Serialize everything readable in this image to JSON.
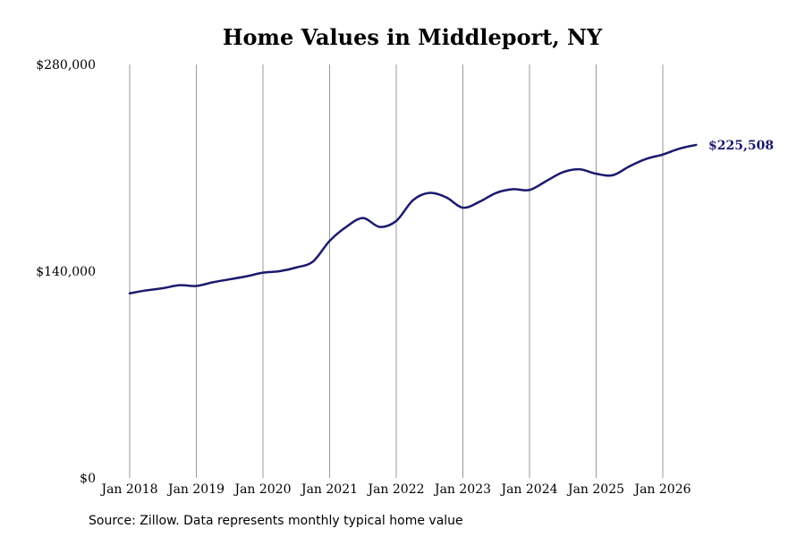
{
  "chart_data": {
    "type": "line",
    "title": "Home Values in Middleport, NY",
    "xlabel": "",
    "ylabel": "",
    "x_range": [
      "2018-01",
      "2026-08"
    ],
    "ylim": [
      0,
      280000
    ],
    "yticks": [
      {
        "value": 0,
        "label": "$0"
      },
      {
        "value": 140000,
        "label": "$140,000"
      },
      {
        "value": 280000,
        "label": "$280,000"
      }
    ],
    "xticks": [
      {
        "date": "2018-01",
        "label": "Jan 2018"
      },
      {
        "date": "2019-01",
        "label": "Jan 2019"
      },
      {
        "date": "2020-01",
        "label": "Jan 2020"
      },
      {
        "date": "2021-01",
        "label": "Jan 2021"
      },
      {
        "date": "2022-01",
        "label": "Jan 2022"
      },
      {
        "date": "2023-01",
        "label": "Jan 2023"
      },
      {
        "date": "2024-01",
        "label": "Jan 2024"
      },
      {
        "date": "2025-01",
        "label": "Jan 2025"
      },
      {
        "date": "2026-01",
        "label": "Jan 2026"
      }
    ],
    "grid": "vertical",
    "series": [
      {
        "name": "",
        "color": "#1a1a6e",
        "points": [
          {
            "x": "2018-01",
            "y": 125000
          },
          {
            "x": "2018-04",
            "y": 127000
          },
          {
            "x": "2018-07",
            "y": 128500
          },
          {
            "x": "2018-10",
            "y": 130500
          },
          {
            "x": "2019-01",
            "y": 130000
          },
          {
            "x": "2019-04",
            "y": 132500
          },
          {
            "x": "2019-07",
            "y": 134500
          },
          {
            "x": "2019-10",
            "y": 136500
          },
          {
            "x": "2020-01",
            "y": 139000
          },
          {
            "x": "2020-04",
            "y": 140000
          },
          {
            "x": "2020-07",
            "y": 142500
          },
          {
            "x": "2020-10",
            "y": 146500
          },
          {
            "x": "2021-01",
            "y": 160500
          },
          {
            "x": "2021-04",
            "y": 170000
          },
          {
            "x": "2021-07",
            "y": 176000
          },
          {
            "x": "2021-10",
            "y": 170000
          },
          {
            "x": "2022-01",
            "y": 174000
          },
          {
            "x": "2022-04",
            "y": 188000
          },
          {
            "x": "2022-07",
            "y": 193000
          },
          {
            "x": "2022-10",
            "y": 190000
          },
          {
            "x": "2023-01",
            "y": 183000
          },
          {
            "x": "2023-04",
            "y": 187000
          },
          {
            "x": "2023-07",
            "y": 193000
          },
          {
            "x": "2023-10",
            "y": 195500
          },
          {
            "x": "2024-01",
            "y": 195000
          },
          {
            "x": "2024-04",
            "y": 201000
          },
          {
            "x": "2024-07",
            "y": 207000
          },
          {
            "x": "2024-10",
            "y": 209000
          },
          {
            "x": "2025-01",
            "y": 206000
          },
          {
            "x": "2025-04",
            "y": 205000
          },
          {
            "x": "2025-07",
            "y": 211000
          },
          {
            "x": "2025-10",
            "y": 216000
          },
          {
            "x": "2026-01",
            "y": 219000
          },
          {
            "x": "2026-04",
            "y": 223000
          },
          {
            "x": "2026-07",
            "y": 225508
          }
        ]
      }
    ],
    "annotations": [
      {
        "text": "$225,508",
        "x": "2026-07",
        "y": 225508
      }
    ]
  },
  "footer": {
    "source": "Source: Zillow. Data represents monthly typical home value"
  },
  "colors": {
    "line": "#1a1a6e",
    "grid": "#999999",
    "end_label": "#1a1a6e"
  }
}
